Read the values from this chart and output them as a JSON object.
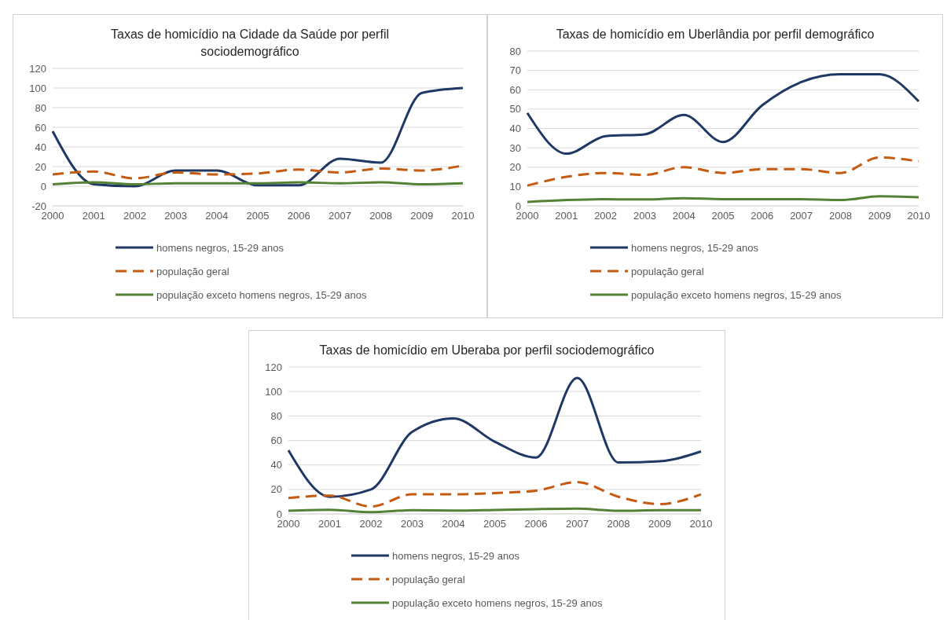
{
  "chart_data": [
    {
      "type": "line",
      "title": "Taxas de homicídio na Cidade da Saúde por perfil sociodemográfico",
      "categories": [
        "2000",
        "2001",
        "2002",
        "2003",
        "2004",
        "2005",
        "2006",
        "2007",
        "2008",
        "2009",
        "2010"
      ],
      "ylim": [
        -20,
        120
      ],
      "yticks": [
        -20,
        0,
        20,
        40,
        60,
        80,
        100,
        120
      ],
      "grid": "y",
      "legend": "bottom",
      "series": [
        {
          "name": "homens negros, 15-29 anos",
          "color": "#203864",
          "line_style": "solid",
          "values": [
            56,
            2,
            0,
            16,
            16,
            1,
            1,
            28,
            24,
            95,
            100
          ]
        },
        {
          "name": "população geral",
          "color": "#c55a11",
          "line_style": "dashed",
          "values": [
            12,
            15,
            8,
            14,
            12,
            13,
            17,
            14,
            18,
            16,
            21
          ]
        },
        {
          "name": "população exceto homens negros, 15-29 anos",
          "color": "#548235",
          "line_style": "solid",
          "values": [
            2,
            4,
            2,
            3,
            3,
            3,
            4,
            3,
            4,
            2,
            3
          ]
        }
      ]
    },
    {
      "type": "line",
      "title": "Taxas de homicídio em Uberlândia por perfil demográfico",
      "categories": [
        "2000",
        "2001",
        "2002",
        "2003",
        "2004",
        "2005",
        "2006",
        "2007",
        "2008",
        "2009",
        "2010"
      ],
      "ylim": [
        0,
        80
      ],
      "yticks": [
        0,
        10,
        20,
        30,
        40,
        50,
        60,
        70,
        80
      ],
      "grid": "y",
      "legend": "bottom",
      "series": [
        {
          "name": "homens negros, 15-29 anos",
          "color": "#203864",
          "line_style": "solid",
          "values": [
            48,
            27,
            36,
            37,
            47,
            33,
            52,
            64,
            68,
            68,
            54
          ]
        },
        {
          "name": "população geral",
          "color": "#c55a11",
          "line_style": "dashed",
          "values": [
            10.5,
            15,
            17,
            16,
            20,
            17,
            19,
            19,
            17,
            25,
            23
          ]
        },
        {
          "name": "população exceto homens negros, 15-29 anos",
          "color": "#548235",
          "line_style": "solid",
          "values": [
            2,
            3,
            3.5,
            3.3,
            4,
            3.5,
            3.5,
            3.5,
            3,
            5,
            4.5
          ]
        }
      ]
    },
    {
      "type": "line",
      "title": "Taxas de homicídio em Uberaba por perfil sociodemográfico",
      "categories": [
        "2000",
        "2001",
        "2002",
        "2003",
        "2004",
        "2005",
        "2006",
        "2007",
        "2008",
        "2009",
        "2010"
      ],
      "ylim": [
        0,
        120
      ],
      "yticks": [
        0,
        20,
        40,
        60,
        80,
        100,
        120
      ],
      "grid": "y",
      "legend": "bottom",
      "series": [
        {
          "name": "homens negros, 15-29 anos",
          "color": "#203864",
          "line_style": "solid",
          "values": [
            52,
            14,
            20,
            67,
            78,
            59,
            46,
            111,
            42,
            43,
            51
          ]
        },
        {
          "name": "população geral",
          "color": "#c55a11",
          "line_style": "dashed",
          "values": [
            13,
            15,
            6,
            16,
            16,
            17,
            19,
            26,
            14,
            8,
            16
          ]
        },
        {
          "name": "população exceto homens negros, 15-29 anos",
          "color": "#548235",
          "line_style": "solid",
          "values": [
            2.5,
            3.4,
            1.4,
            3,
            2.7,
            3.2,
            3.9,
            4.3,
            2.5,
            3,
            3
          ]
        }
      ]
    }
  ]
}
